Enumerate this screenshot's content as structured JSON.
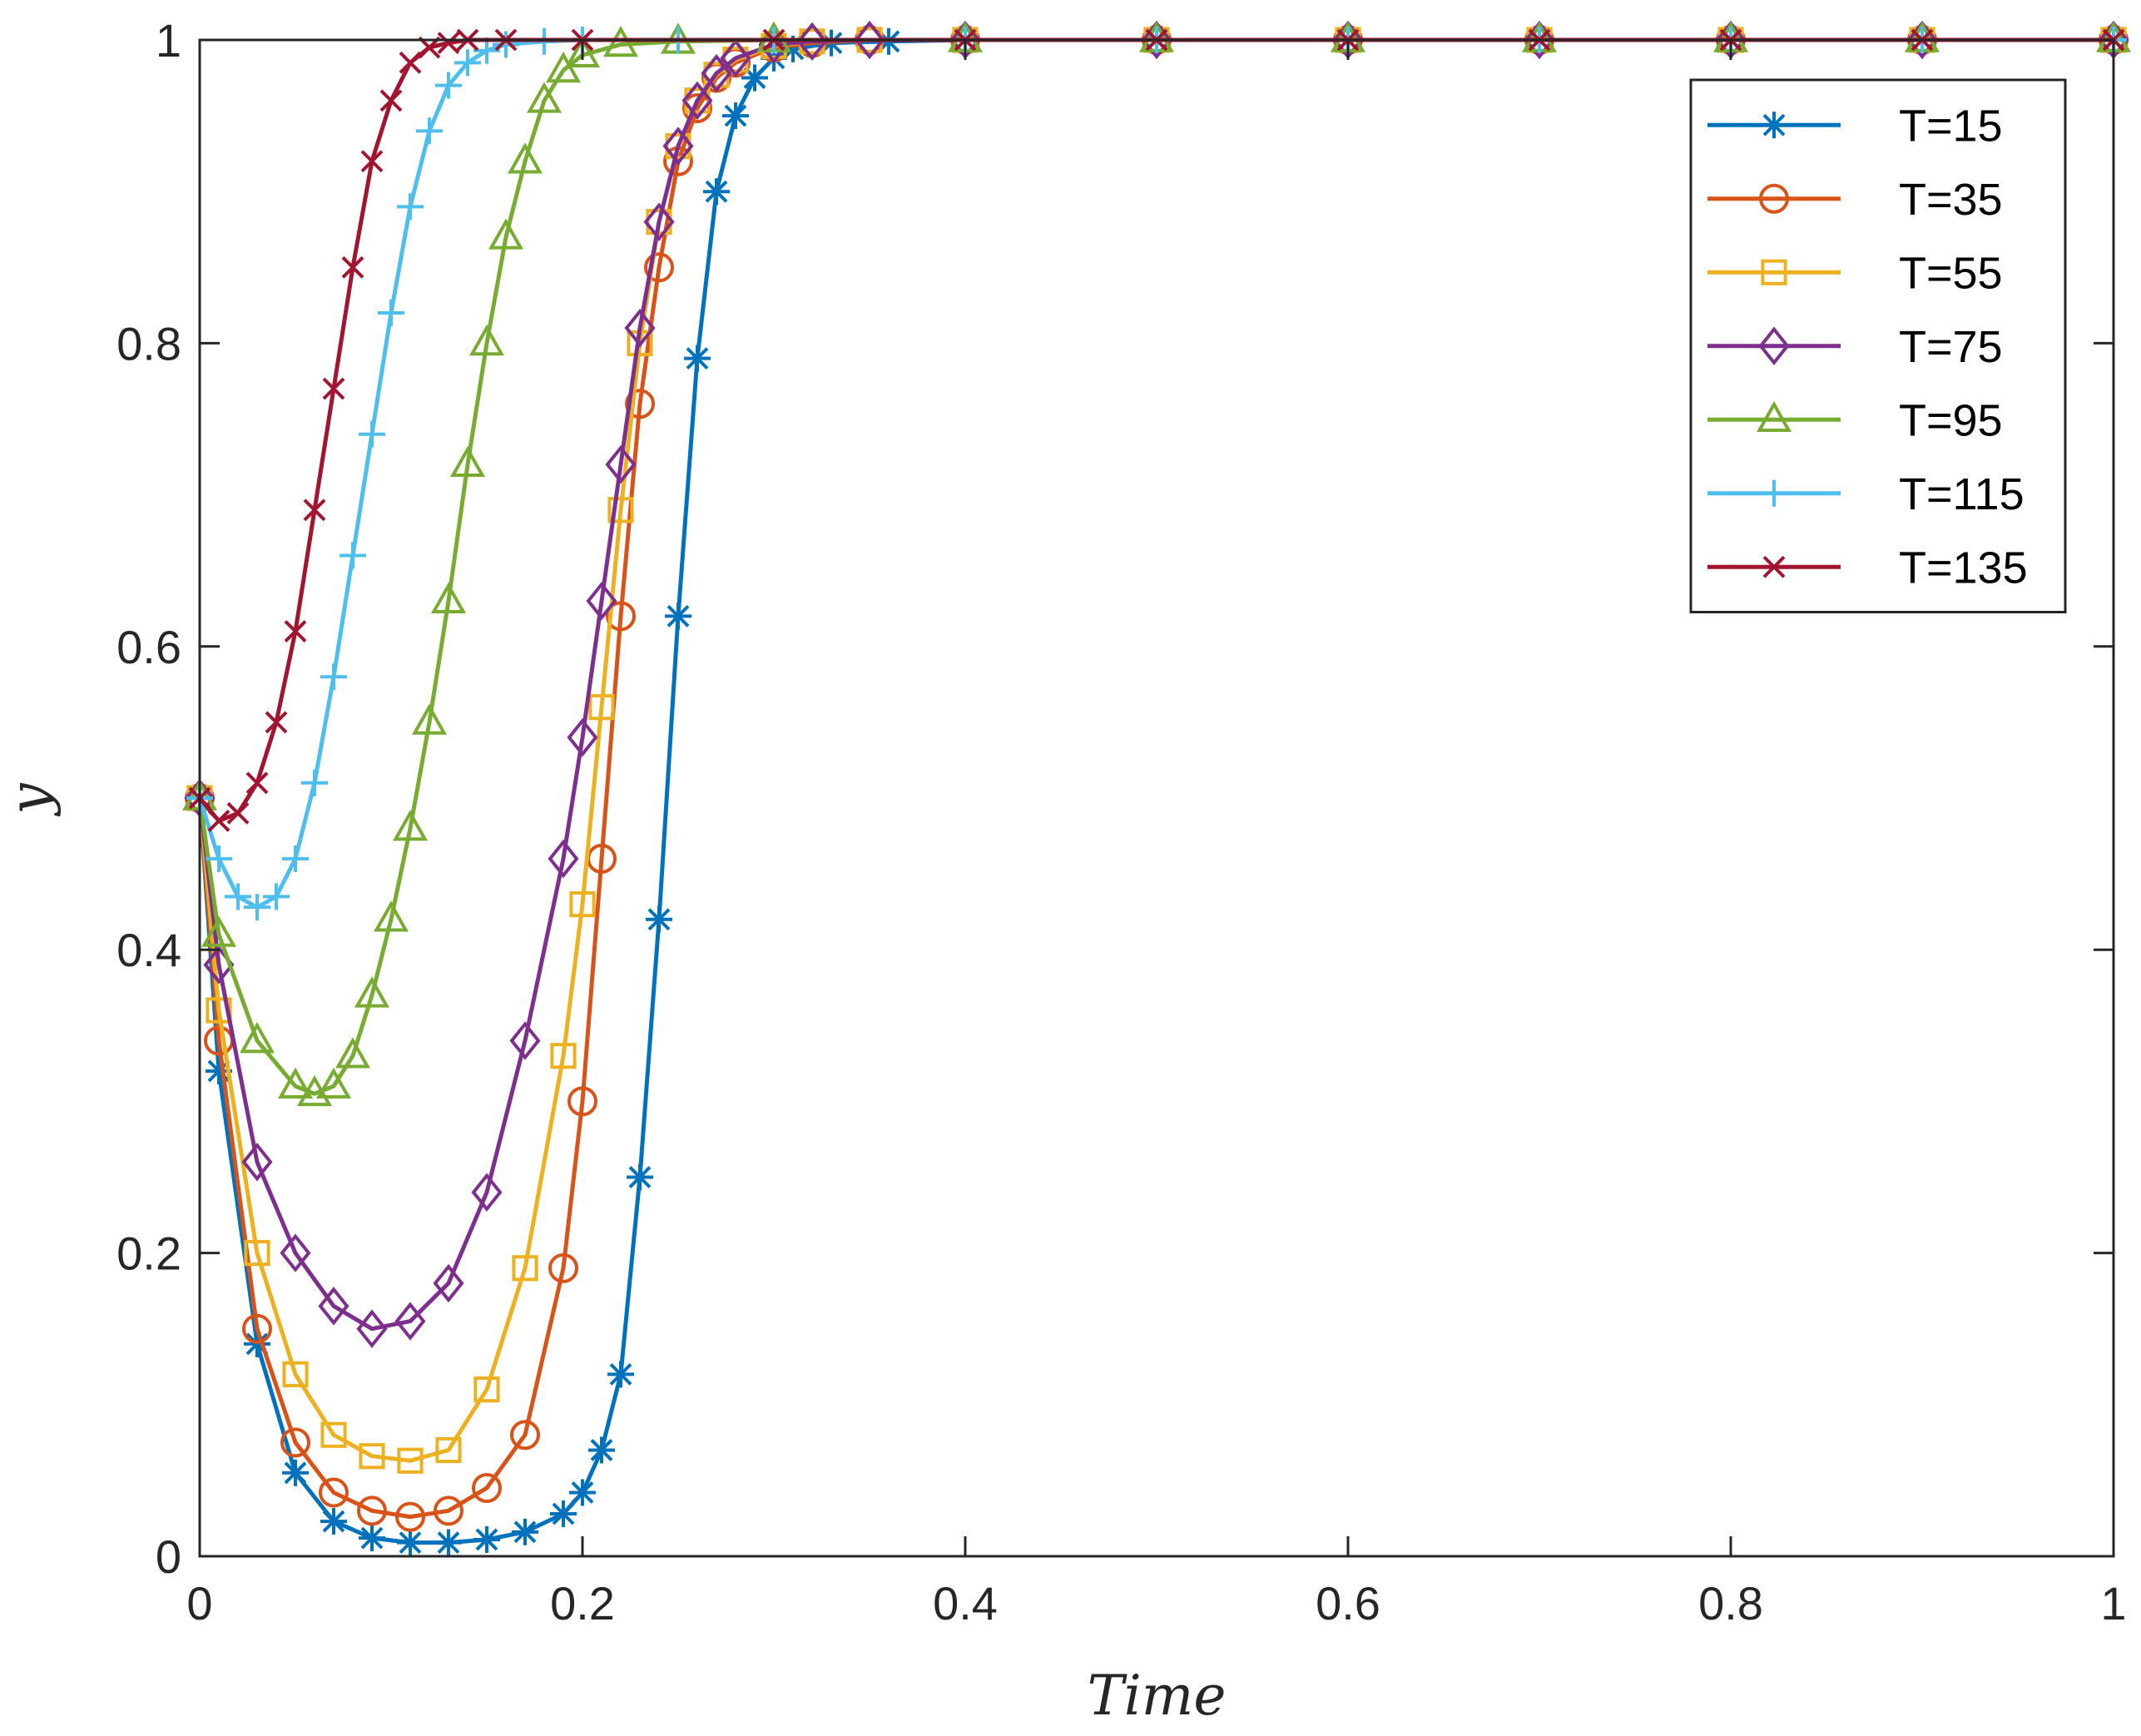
{
  "chart_data": {
    "type": "line",
    "title": "",
    "xlabel": "Time",
    "ylabel": "y",
    "xlim": [
      0,
      1
    ],
    "ylim": [
      0,
      1
    ],
    "xticks": [
      "0",
      "0.2",
      "0.4",
      "0.6",
      "0.8",
      "1"
    ],
    "yticks": [
      "0",
      "0.2",
      "0.4",
      "0.6",
      "0.8",
      "1"
    ],
    "grid": false,
    "legend_position": "top-right",
    "series": [
      {
        "name": "T=15",
        "color": "#0072BD",
        "marker": "asterisk",
        "x": [
          0,
          0.01,
          0.03,
          0.05,
          0.07,
          0.09,
          0.11,
          0.13,
          0.15,
          0.17,
          0.19,
          0.2,
          0.21,
          0.22,
          0.23,
          0.24,
          0.25,
          0.26,
          0.27,
          0.28,
          0.29,
          0.3,
          0.31,
          0.33,
          0.36,
          0.4,
          0.5,
          0.6,
          0.7,
          0.8,
          0.9,
          1.0
        ],
        "y": [
          0.5,
          0.32,
          0.14,
          0.055,
          0.023,
          0.012,
          0.009,
          0.009,
          0.011,
          0.016,
          0.028,
          0.042,
          0.07,
          0.12,
          0.25,
          0.42,
          0.62,
          0.79,
          0.9,
          0.95,
          0.975,
          0.988,
          0.994,
          0.998,
          0.999,
          1.0,
          1.0,
          1.0,
          1.0,
          1.0,
          1.0,
          1.0
        ]
      },
      {
        "name": "T=35",
        "color": "#D95319",
        "marker": "circle",
        "x": [
          0,
          0.01,
          0.03,
          0.05,
          0.07,
          0.09,
          0.11,
          0.13,
          0.15,
          0.17,
          0.19,
          0.2,
          0.21,
          0.22,
          0.23,
          0.24,
          0.25,
          0.26,
          0.27,
          0.28,
          0.3,
          0.32,
          0.35,
          0.4,
          0.5,
          0.6,
          0.7,
          0.8,
          0.9,
          1.0
        ],
        "y": [
          0.5,
          0.34,
          0.15,
          0.075,
          0.042,
          0.03,
          0.026,
          0.03,
          0.045,
          0.08,
          0.19,
          0.3,
          0.46,
          0.62,
          0.76,
          0.85,
          0.92,
          0.955,
          0.975,
          0.985,
          0.995,
          0.998,
          1.0,
          1.0,
          1.0,
          1.0,
          1.0,
          1.0,
          1.0,
          1.0
        ]
      },
      {
        "name": "T=55",
        "color": "#EDB120",
        "marker": "square",
        "x": [
          0,
          0.01,
          0.03,
          0.05,
          0.07,
          0.09,
          0.11,
          0.13,
          0.15,
          0.17,
          0.19,
          0.2,
          0.21,
          0.22,
          0.23,
          0.24,
          0.25,
          0.26,
          0.27,
          0.28,
          0.3,
          0.32,
          0.35,
          0.4,
          0.5,
          0.6,
          0.7,
          0.8,
          0.9,
          1.0
        ],
        "y": [
          0.5,
          0.36,
          0.2,
          0.12,
          0.08,
          0.066,
          0.063,
          0.07,
          0.11,
          0.19,
          0.33,
          0.43,
          0.56,
          0.69,
          0.8,
          0.88,
          0.93,
          0.96,
          0.977,
          0.987,
          0.996,
          0.999,
          1.0,
          1.0,
          1.0,
          1.0,
          1.0,
          1.0,
          1.0,
          1.0
        ]
      },
      {
        "name": "T=75",
        "color": "#7E2F8E",
        "marker": "diamond",
        "x": [
          0,
          0.01,
          0.03,
          0.05,
          0.07,
          0.09,
          0.11,
          0.13,
          0.15,
          0.17,
          0.19,
          0.2,
          0.21,
          0.22,
          0.23,
          0.24,
          0.25,
          0.26,
          0.27,
          0.28,
          0.3,
          0.32,
          0.35,
          0.4,
          0.5,
          0.6,
          0.7,
          0.8,
          0.9,
          1.0
        ],
        "y": [
          0.5,
          0.39,
          0.26,
          0.2,
          0.165,
          0.15,
          0.155,
          0.18,
          0.24,
          0.34,
          0.46,
          0.54,
          0.63,
          0.72,
          0.81,
          0.88,
          0.93,
          0.96,
          0.978,
          0.988,
          0.997,
          0.999,
          1.0,
          1.0,
          1.0,
          1.0,
          1.0,
          1.0,
          1.0,
          1.0
        ]
      },
      {
        "name": "T=95",
        "color": "#77AC30",
        "marker": "triangle",
        "x": [
          0,
          0.01,
          0.03,
          0.05,
          0.06,
          0.07,
          0.08,
          0.09,
          0.1,
          0.11,
          0.12,
          0.13,
          0.14,
          0.15,
          0.16,
          0.17,
          0.18,
          0.19,
          0.2,
          0.22,
          0.25,
          0.3,
          0.4,
          0.5,
          0.6,
          0.7,
          0.8,
          0.9,
          1.0
        ],
        "y": [
          0.5,
          0.41,
          0.34,
          0.31,
          0.305,
          0.31,
          0.33,
          0.37,
          0.42,
          0.48,
          0.55,
          0.63,
          0.72,
          0.8,
          0.87,
          0.92,
          0.96,
          0.98,
          0.99,
          0.997,
          0.999,
          1.0,
          1.0,
          1.0,
          1.0,
          1.0,
          1.0,
          1.0,
          1.0
        ]
      },
      {
        "name": "T=115",
        "color": "#4DBEEE",
        "marker": "plus",
        "x": [
          0,
          0.01,
          0.02,
          0.03,
          0.04,
          0.05,
          0.06,
          0.07,
          0.08,
          0.09,
          0.1,
          0.11,
          0.12,
          0.13,
          0.14,
          0.15,
          0.16,
          0.18,
          0.2,
          0.25,
          0.3,
          0.4,
          0.5,
          0.6,
          0.7,
          0.8,
          0.9,
          1.0
        ],
        "y": [
          0.5,
          0.46,
          0.435,
          0.428,
          0.435,
          0.46,
          0.51,
          0.58,
          0.66,
          0.74,
          0.82,
          0.89,
          0.94,
          0.97,
          0.985,
          0.993,
          0.997,
          0.999,
          1.0,
          1.0,
          1.0,
          1.0,
          1.0,
          1.0,
          1.0,
          1.0,
          1.0,
          1.0
        ]
      },
      {
        "name": "T=135",
        "color": "#A2142F",
        "marker": "cross",
        "x": [
          0,
          0.01,
          0.02,
          0.03,
          0.04,
          0.05,
          0.06,
          0.07,
          0.08,
          0.09,
          0.1,
          0.11,
          0.12,
          0.13,
          0.14,
          0.16,
          0.2,
          0.3,
          0.4,
          0.5,
          0.6,
          0.7,
          0.8,
          0.9,
          1.0
        ],
        "y": [
          0.5,
          0.485,
          0.49,
          0.51,
          0.55,
          0.61,
          0.69,
          0.77,
          0.85,
          0.92,
          0.96,
          0.985,
          0.995,
          0.998,
          1.0,
          1.0,
          1.0,
          1.0,
          1.0,
          1.0,
          1.0,
          1.0,
          1.0,
          1.0,
          1.0
        ]
      }
    ]
  }
}
